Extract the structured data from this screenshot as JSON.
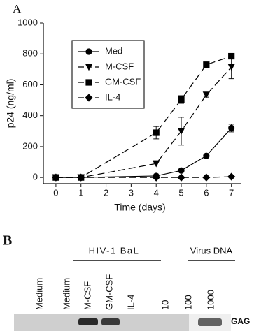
{
  "chart_data": {
    "type": "line",
    "panel_label": "A",
    "x_label": "Time (days)",
    "y_label": "p24 (ng/ml)",
    "x": [
      0,
      1,
      4,
      5,
      6,
      7
    ],
    "series": [
      {
        "name": "Med",
        "color": "#000000",
        "marker": "circle",
        "dashed": false,
        "values": [
          0,
          0,
          10,
          45,
          140,
          320
        ],
        "errors": [
          null,
          null,
          null,
          null,
          null,
          25
        ]
      },
      {
        "name": "M-CSF",
        "color": "#000000",
        "marker": "triangle-down",
        "dashed": true,
        "values": [
          0,
          0,
          90,
          300,
          535,
          715
        ],
        "errors": [
          null,
          null,
          null,
          90,
          15,
          75
        ]
      },
      {
        "name": "GM-CSF",
        "color": "#000000",
        "marker": "square",
        "dashed": true,
        "values": [
          0,
          0,
          290,
          505,
          730,
          785
        ],
        "errors": [
          null,
          null,
          40,
          25,
          null,
          null
        ]
      },
      {
        "name": "IL-4",
        "color": "#000000",
        "marker": "diamond",
        "dashed": true,
        "values": [
          0,
          0,
          0,
          0,
          0,
          5
        ],
        "errors": [
          null,
          null,
          null,
          null,
          null,
          null
        ]
      }
    ],
    "xlim": [
      -0.5,
      7.4
    ],
    "ylim": [
      -40,
      1000
    ],
    "xticks": [
      0,
      1,
      2,
      3,
      4,
      5,
      6,
      7
    ],
    "yticks": [
      0,
      200,
      400,
      600,
      800,
      1000
    ],
    "legend": "upper left",
    "grid": false
  },
  "panel_b": {
    "panel_label": "B",
    "groups": [
      "HIV-1 BaL",
      "Virus DNA"
    ],
    "lanes": [
      "Medium",
      "Medium",
      "M-CSF",
      "GM-CSF",
      "IL-4",
      "10",
      "100",
      "1000"
    ],
    "band_label": "GAG"
  }
}
